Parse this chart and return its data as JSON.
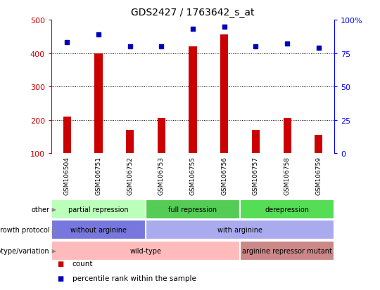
{
  "title": "GDS2427 / 1763642_s_at",
  "samples": [
    "GSM106504",
    "GSM106751",
    "GSM106752",
    "GSM106753",
    "GSM106755",
    "GSM106756",
    "GSM106757",
    "GSM106758",
    "GSM106759"
  ],
  "bar_values": [
    210,
    400,
    170,
    205,
    420,
    455,
    170,
    205,
    155
  ],
  "scatter_pct": [
    83,
    89,
    80,
    80,
    93,
    95,
    80,
    82,
    79
  ],
  "ylim_left": [
    100,
    500
  ],
  "ylim_right": [
    0,
    100
  ],
  "yticks_left": [
    100,
    200,
    300,
    400,
    500
  ],
  "yticks_right": [
    0,
    25,
    50,
    75,
    100
  ],
  "bar_color": "#cc0000",
  "scatter_color": "#0000bb",
  "annotation_rows": [
    {
      "label": "other",
      "segments": [
        {
          "text": "partial repression",
          "start": 0,
          "end": 3,
          "color": "#bbffbb"
        },
        {
          "text": "full repression",
          "start": 3,
          "end": 6,
          "color": "#55cc55"
        },
        {
          "text": "derepression",
          "start": 6,
          "end": 9,
          "color": "#55dd55"
        }
      ]
    },
    {
      "label": "growth protocol",
      "segments": [
        {
          "text": "without arginine",
          "start": 0,
          "end": 3,
          "color": "#7777dd"
        },
        {
          "text": "with arginine",
          "start": 3,
          "end": 9,
          "color": "#aaaaee"
        }
      ]
    },
    {
      "label": "genotype/variation",
      "segments": [
        {
          "text": "wild-type",
          "start": 0,
          "end": 6,
          "color": "#ffbbbb"
        },
        {
          "text": "arginine repressor mutant",
          "start": 6,
          "end": 9,
          "color": "#cc8888"
        }
      ]
    }
  ],
  "legend_items": [
    {
      "color": "#cc0000",
      "marker": "s",
      "label": "count"
    },
    {
      "color": "#0000bb",
      "marker": "s",
      "label": "percentile rank within the sample"
    }
  ]
}
